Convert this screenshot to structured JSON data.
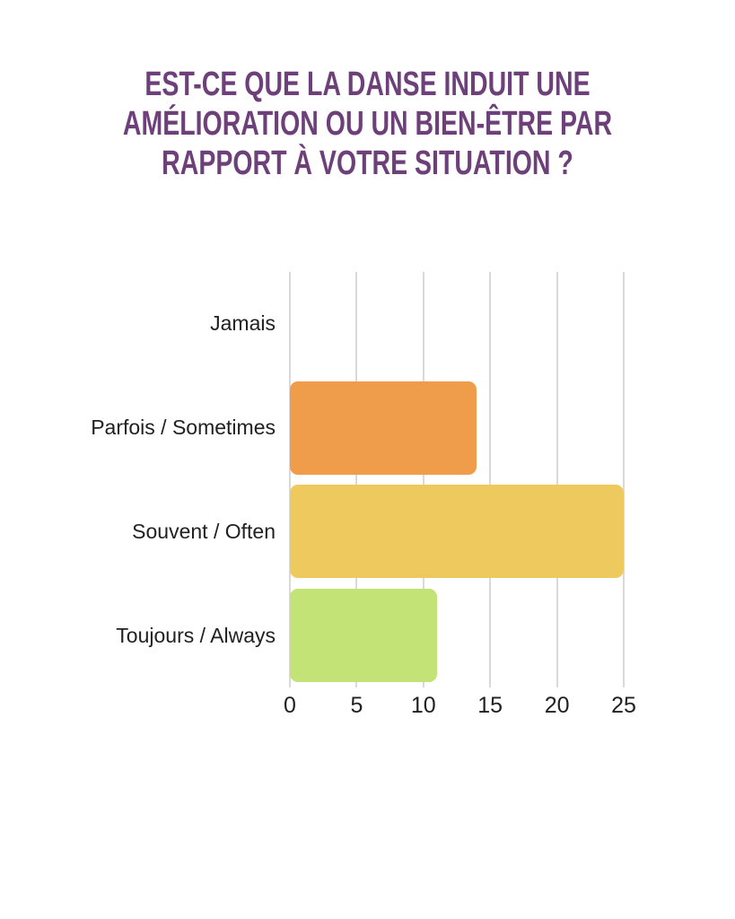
{
  "header": {
    "title_lines": [
      "EST-CE QUE LA DANSE INDUIT UNE",
      "AMÉLIORATION OU UN BIEN-ÊTRE PAR",
      "RAPPORT À VOTRE SITUATION ?"
    ]
  },
  "theme": {
    "background": "#FFFFFF",
    "title_color": "#6D407A",
    "text_color": "#212121",
    "gridline_color": "#D9D9D9"
  },
  "chart_data": {
    "type": "bar",
    "orientation": "horizontal",
    "title": "EST-CE QUE LA DANSE INDUIT UNE AMÉLIORATION OU UN BIEN-ÊTRE PAR RAPPORT À VOTRE SITUATION ?",
    "categories": [
      "Jamais",
      "Parfois / Sometimes",
      "Souvent / Often",
      "Toujours / Always"
    ],
    "values": [
      0,
      14,
      25,
      11
    ],
    "bar_colors": [
      null,
      "#EF9C4B",
      "#EDC95E",
      "#C3E377"
    ],
    "xlabel": "",
    "ylabel": "",
    "xlim": [
      0,
      25
    ],
    "x_ticks": [
      0,
      5,
      10,
      15,
      20,
      25
    ],
    "grid": "vertical",
    "legend": false
  }
}
